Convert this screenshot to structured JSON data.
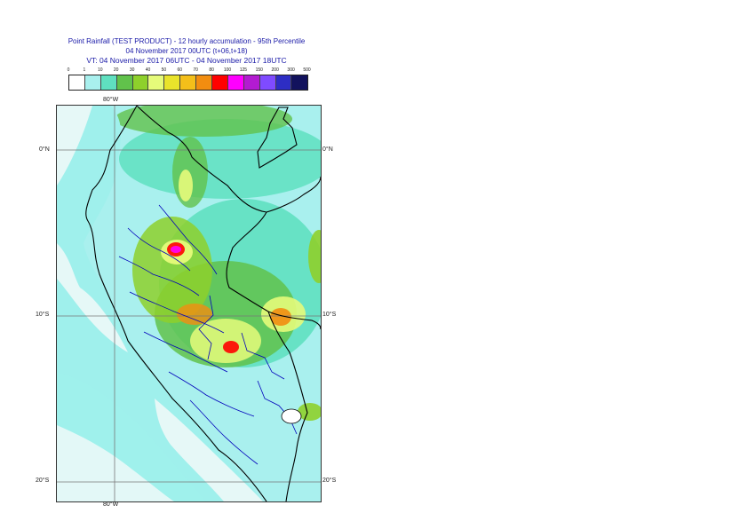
{
  "title": {
    "line1": "Point Rainfall (TEST PRODUCT) - 12 hourly accumulation - 95th Percentile",
    "line2": "04 November 2017 00UTC (t+06,t+18)",
    "line3": "VT: 04 November 2017 06UTC - 04 November 2017 18UTC"
  },
  "legend": {
    "ticks": [
      "0",
      "1",
      "10",
      "20",
      "30",
      "40",
      "50",
      "60",
      "70",
      "80",
      "100",
      "125",
      "150",
      "200",
      "300",
      "500"
    ],
    "colors": [
      "#ffffff",
      "#a9f0ee",
      "#5fe0c0",
      "#61c24b",
      "#8ed02b",
      "#e6fb7a",
      "#e9e32b",
      "#f4bf1a",
      "#f28d10",
      "#ff0000",
      "#ff00ff",
      "#b31bd1",
      "#7f4bff",
      "#2d2dc4",
      "#12125d"
    ]
  },
  "map": {
    "lon_top_label": "80°W",
    "lon_bottom_label": "80°W",
    "lat_labels": [
      {
        "label": "0°N"
      },
      {
        "label": "10°S"
      },
      {
        "label": "20°S"
      }
    ],
    "colors": {
      "ocean_light": "#9ff0ec",
      "ocean_pale": "#eaf8f8",
      "coast": "#000000",
      "inner_border": "#0000bb",
      "grid": "#777777",
      "light_rain": "#a9f0ee",
      "moderate": "#5fe0c0",
      "green": "#61c24b",
      "yellowgreen": "#8ed02b",
      "yellow": "#e6fb7a",
      "orange": "#f28d10",
      "red": "#ff0000",
      "magenta": "#ff00ff"
    }
  }
}
